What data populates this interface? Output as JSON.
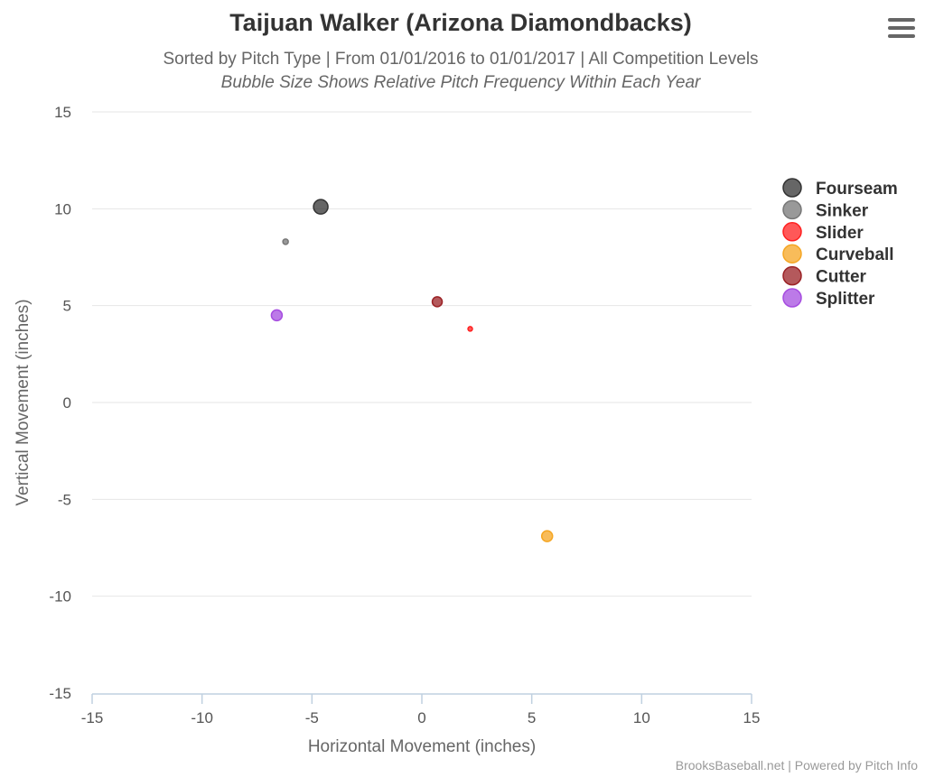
{
  "title": "Taijuan Walker (Arizona Diamondbacks)",
  "subtitle": "Sorted by Pitch Type | From 01/01/2016 to 01/01/2017 | All Competition Levels",
  "subtitle2": "Bubble Size Shows Relative Pitch Frequency Within Each Year",
  "credits": "BrooksBaseball.net | Powered by Pitch Info",
  "menu_icon": "hamburger-menu-icon",
  "chart_data": {
    "type": "scatter",
    "xlabel": "Horizontal Movement (inches)",
    "ylabel": "Vertical Movement (inches)",
    "xlim": [
      -15,
      15
    ],
    "ylim": [
      -15,
      15
    ],
    "xticks": [
      "-15",
      "-10",
      "-5",
      "0",
      "5",
      "10",
      "15"
    ],
    "yticks": [
      "15",
      "10",
      "5",
      "0",
      "-5",
      "-10",
      "-15"
    ],
    "grid": "horizontal",
    "legend": "right",
    "series": [
      {
        "name": "Fourseam",
        "color": "#333333",
        "x": -4.6,
        "y": 10.1,
        "relative_size": 8
      },
      {
        "name": "Sinker",
        "color": "#777777",
        "x": -6.2,
        "y": 8.3,
        "relative_size": 3
      },
      {
        "name": "Slider",
        "color": "#ff2020",
        "x": 2.2,
        "y": 3.8,
        "relative_size": 2.5
      },
      {
        "name": "Curveball",
        "color": "#f5a623",
        "x": 5.7,
        "y": -6.9,
        "relative_size": 6
      },
      {
        "name": "Cutter",
        "color": "#9b2226",
        "x": 0.7,
        "y": 5.2,
        "relative_size": 5.5
      },
      {
        "name": "Splitter",
        "color": "#a64de0",
        "x": -6.6,
        "y": 4.5,
        "relative_size": 6
      }
    ]
  }
}
